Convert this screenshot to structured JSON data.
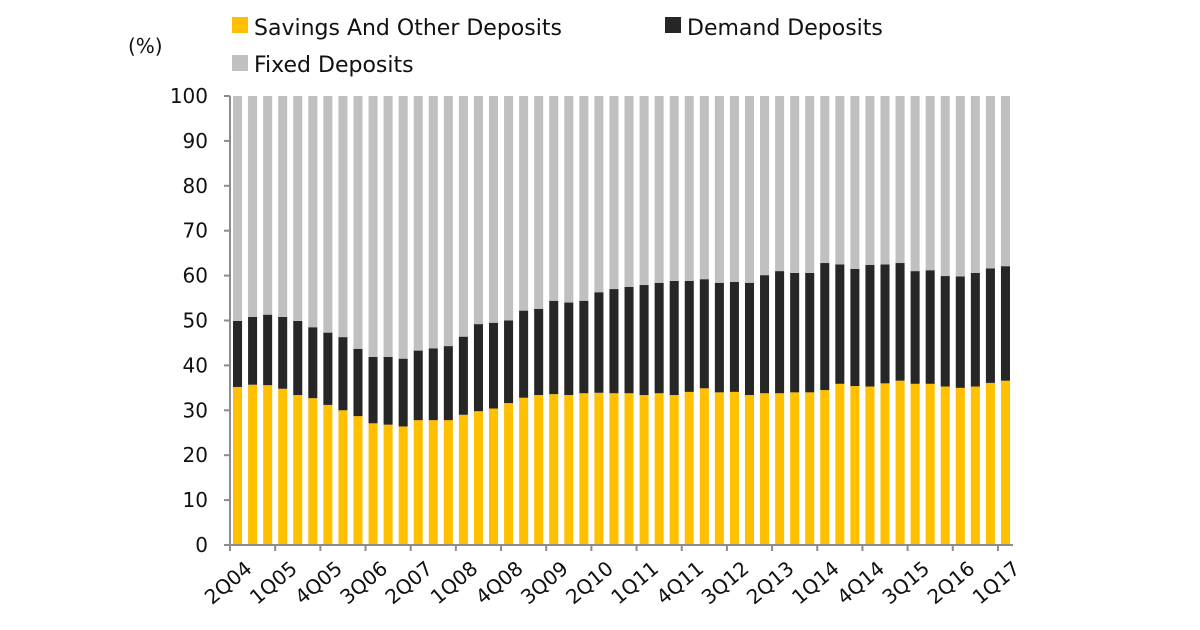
{
  "chart_data": {
    "type": "bar",
    "stacked": true,
    "ylabel": "(%)",
    "ylim": [
      0,
      100
    ],
    "yticks": [
      0,
      10,
      20,
      30,
      40,
      50,
      60,
      70,
      80,
      90,
      100
    ],
    "grid": false,
    "legend_position": "top",
    "categories": [
      "2Q04",
      "3Q04",
      "4Q04",
      "1Q05",
      "2Q05",
      "3Q05",
      "4Q05",
      "1Q06",
      "2Q06",
      "3Q06",
      "4Q06",
      "1Q07",
      "2Q07",
      "3Q07",
      "4Q07",
      "1Q08",
      "2Q08",
      "3Q08",
      "4Q08",
      "1Q09",
      "2Q09",
      "3Q09",
      "4Q09",
      "1Q10",
      "2Q10",
      "3Q10",
      "4Q10",
      "1Q11",
      "2Q11",
      "3Q11",
      "4Q11",
      "1Q12",
      "2Q12",
      "3Q12",
      "4Q12",
      "1Q13",
      "2Q13",
      "3Q13",
      "4Q13",
      "1Q14",
      "2Q14",
      "3Q14",
      "4Q14",
      "1Q15",
      "2Q15",
      "3Q15",
      "4Q15",
      "1Q16",
      "2Q16",
      "3Q16",
      "4Q16",
      "1Q17"
    ],
    "xtick_labels": [
      "2Q04",
      "1Q05",
      "4Q05",
      "3Q06",
      "2Q07",
      "1Q08",
      "4Q08",
      "3Q09",
      "2Q10",
      "1Q11",
      "4Q11",
      "3Q12",
      "2Q13",
      "1Q14",
      "4Q14",
      "3Q15",
      "2Q16",
      "1Q17"
    ],
    "series": [
      {
        "name": "Savings And Other Deposits",
        "color": "#FFC000",
        "values": [
          35.2,
          35.7,
          35.6,
          34.8,
          33.4,
          32.7,
          31.2,
          30.0,
          28.7,
          27.1,
          26.8,
          26.4,
          27.8,
          27.8,
          27.8,
          29.0,
          29.8,
          30.4,
          31.6,
          32.8,
          33.4,
          33.6,
          33.4,
          33.8,
          33.9,
          33.8,
          33.8,
          33.4,
          33.8,
          33.4,
          34.1,
          34.9,
          34.0,
          34.1,
          33.4,
          33.8,
          33.8,
          34.0,
          34.0,
          34.5,
          35.9,
          35.4,
          35.3,
          36.0,
          36.6,
          35.9,
          35.9,
          35.3,
          35.0,
          35.3,
          36.1,
          36.6
        ]
      },
      {
        "name": "Demand Deposits",
        "color": "#262626",
        "values": [
          14.7,
          15.1,
          15.7,
          16.0,
          16.5,
          15.8,
          16.1,
          16.3,
          15.0,
          14.8,
          15.1,
          15.1,
          15.5,
          16.0,
          16.5,
          17.4,
          19.4,
          19.1,
          18.4,
          19.4,
          19.2,
          20.8,
          20.6,
          20.6,
          22.4,
          23.2,
          23.7,
          24.5,
          24.6,
          25.4,
          24.7,
          24.3,
          24.4,
          24.5,
          25.0,
          26.3,
          27.2,
          26.6,
          26.6,
          28.3,
          26.6,
          26.1,
          27.1,
          26.5,
          26.2,
          25.1,
          25.3,
          24.6,
          24.8,
          25.3,
          25.5,
          25.5
        ]
      },
      {
        "name": "Fixed Deposits",
        "color": "#C0C0C0",
        "values": [
          50.1,
          49.2,
          48.7,
          49.2,
          50.1,
          51.5,
          52.7,
          53.7,
          56.3,
          58.1,
          58.1,
          58.5,
          56.7,
          56.2,
          55.7,
          53.6,
          50.8,
          50.5,
          50.0,
          47.8,
          47.4,
          45.6,
          46.0,
          45.6,
          43.7,
          43.0,
          42.5,
          42.1,
          41.6,
          41.2,
          41.2,
          40.8,
          41.6,
          41.4,
          41.6,
          39.9,
          39.0,
          39.4,
          39.4,
          37.2,
          37.5,
          38.5,
          37.6,
          37.5,
          37.2,
          39.0,
          38.8,
          40.1,
          40.2,
          39.4,
          38.4,
          37.9
        ]
      }
    ]
  }
}
